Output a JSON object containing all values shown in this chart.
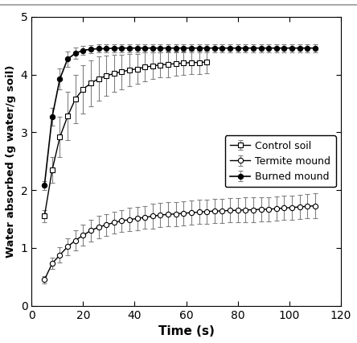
{
  "title": "",
  "xlabel": "Time (s)",
  "ylabel": "Water absorbed (g water/g soil)",
  "xlim": [
    0,
    120
  ],
  "ylim": [
    0,
    5
  ],
  "xticks": [
    0,
    20,
    40,
    60,
    80,
    100,
    120
  ],
  "yticks": [
    0,
    1,
    2,
    3,
    4,
    5
  ],
  "control_soil": {
    "x": [
      5,
      8,
      11,
      14,
      17,
      20,
      23,
      26,
      29,
      32,
      35,
      38,
      41,
      44,
      47,
      50,
      53,
      56,
      59,
      62,
      65,
      68
    ],
    "y": [
      1.55,
      2.35,
      2.92,
      3.28,
      3.58,
      3.75,
      3.85,
      3.93,
      3.98,
      4.02,
      4.05,
      4.08,
      4.1,
      4.13,
      4.15,
      4.17,
      4.18,
      4.19,
      4.2,
      4.21,
      4.21,
      4.22
    ],
    "yerr": [
      0.1,
      0.22,
      0.35,
      0.42,
      0.42,
      0.42,
      0.4,
      0.38,
      0.35,
      0.32,
      0.3,
      0.28,
      0.26,
      0.25,
      0.23,
      0.22,
      0.22,
      0.21,
      0.2,
      0.2,
      0.2,
      0.19
    ],
    "label": "Control soil",
    "marker": "s",
    "color": "#000000"
  },
  "termite_mound": {
    "x": [
      5,
      8,
      11,
      14,
      17,
      20,
      23,
      26,
      29,
      32,
      35,
      38,
      41,
      44,
      47,
      50,
      53,
      56,
      59,
      62,
      65,
      68,
      71,
      74,
      77,
      80,
      83,
      86,
      89,
      92,
      95,
      98,
      101,
      104,
      107,
      110
    ],
    "y": [
      0.45,
      0.73,
      0.88,
      1.02,
      1.13,
      1.22,
      1.3,
      1.36,
      1.4,
      1.44,
      1.47,
      1.49,
      1.51,
      1.53,
      1.55,
      1.57,
      1.58,
      1.59,
      1.6,
      1.61,
      1.62,
      1.63,
      1.64,
      1.64,
      1.65,
      1.65,
      1.66,
      1.66,
      1.67,
      1.67,
      1.68,
      1.69,
      1.7,
      1.71,
      1.72,
      1.73
    ],
    "yerr": [
      0.06,
      0.1,
      0.13,
      0.15,
      0.17,
      0.18,
      0.19,
      0.19,
      0.19,
      0.19,
      0.19,
      0.2,
      0.2,
      0.2,
      0.21,
      0.21,
      0.21,
      0.21,
      0.21,
      0.21,
      0.21,
      0.21,
      0.21,
      0.21,
      0.21,
      0.21,
      0.21,
      0.21,
      0.21,
      0.21,
      0.21,
      0.21,
      0.21,
      0.21,
      0.21,
      0.21
    ],
    "label": "Termite mound",
    "marker": "o",
    "color": "#000000"
  },
  "burned_mound": {
    "x": [
      5,
      8,
      11,
      14,
      17,
      20,
      23,
      26,
      29,
      32,
      35,
      38,
      41,
      44,
      47,
      50,
      53,
      56,
      59,
      62,
      65,
      68,
      71,
      74,
      77,
      80,
      83,
      86,
      89,
      92,
      95,
      98,
      101,
      104,
      107,
      110
    ],
    "y": [
      2.08,
      3.27,
      3.93,
      4.27,
      4.37,
      4.42,
      4.44,
      4.45,
      4.45,
      4.46,
      4.46,
      4.46,
      4.46,
      4.46,
      4.46,
      4.46,
      4.46,
      4.46,
      4.46,
      4.46,
      4.46,
      4.46,
      4.46,
      4.46,
      4.46,
      4.46,
      4.46,
      4.46,
      4.46,
      4.46,
      4.46,
      4.46,
      4.46,
      4.46,
      4.46,
      4.46
    ],
    "yerr": [
      0.08,
      0.15,
      0.18,
      0.13,
      0.1,
      0.08,
      0.07,
      0.07,
      0.07,
      0.07,
      0.07,
      0.07,
      0.07,
      0.07,
      0.07,
      0.07,
      0.07,
      0.07,
      0.07,
      0.07,
      0.07,
      0.07,
      0.07,
      0.07,
      0.07,
      0.07,
      0.07,
      0.07,
      0.07,
      0.07,
      0.07,
      0.07,
      0.07,
      0.07,
      0.07,
      0.07
    ],
    "label": "Burned mound",
    "marker": "o",
    "color": "#000000"
  },
  "background_color": "#ffffff",
  "ecolor": "#808080",
  "border_color": "#d0d0d0"
}
